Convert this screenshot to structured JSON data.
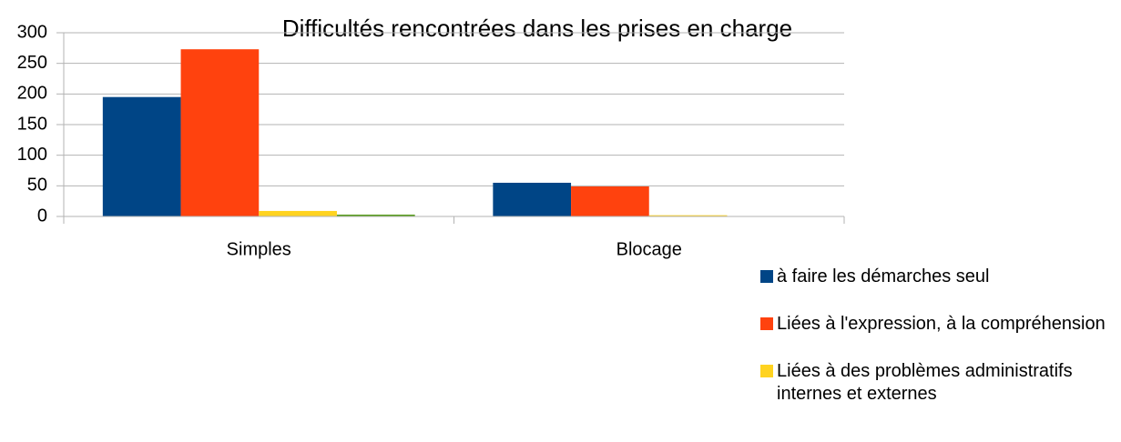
{
  "chart_data": {
    "type": "bar",
    "title": "Difficultés rencontrées dans les prises en charge",
    "categories": [
      "Simples",
      "Blocage"
    ],
    "series": [
      {
        "name": "à faire les démarches seul",
        "color": "#004586",
        "values": [
          195,
          55
        ]
      },
      {
        "name": "Liées à l'expression, à la compréhension",
        "color": "#ff420e",
        "values": [
          273,
          49
        ]
      },
      {
        "name": "Liées à des problèmes adminis­tratifs internes et externes",
        "color": "#ffd320",
        "values": [
          9,
          2
        ]
      },
      {
        "name": null,
        "color": "#579d1c",
        "values": [
          3,
          0
        ]
      }
    ],
    "ylim": [
      0,
      300
    ],
    "yticks": [
      0,
      50,
      100,
      150,
      200,
      250,
      300
    ],
    "grid": true
  }
}
